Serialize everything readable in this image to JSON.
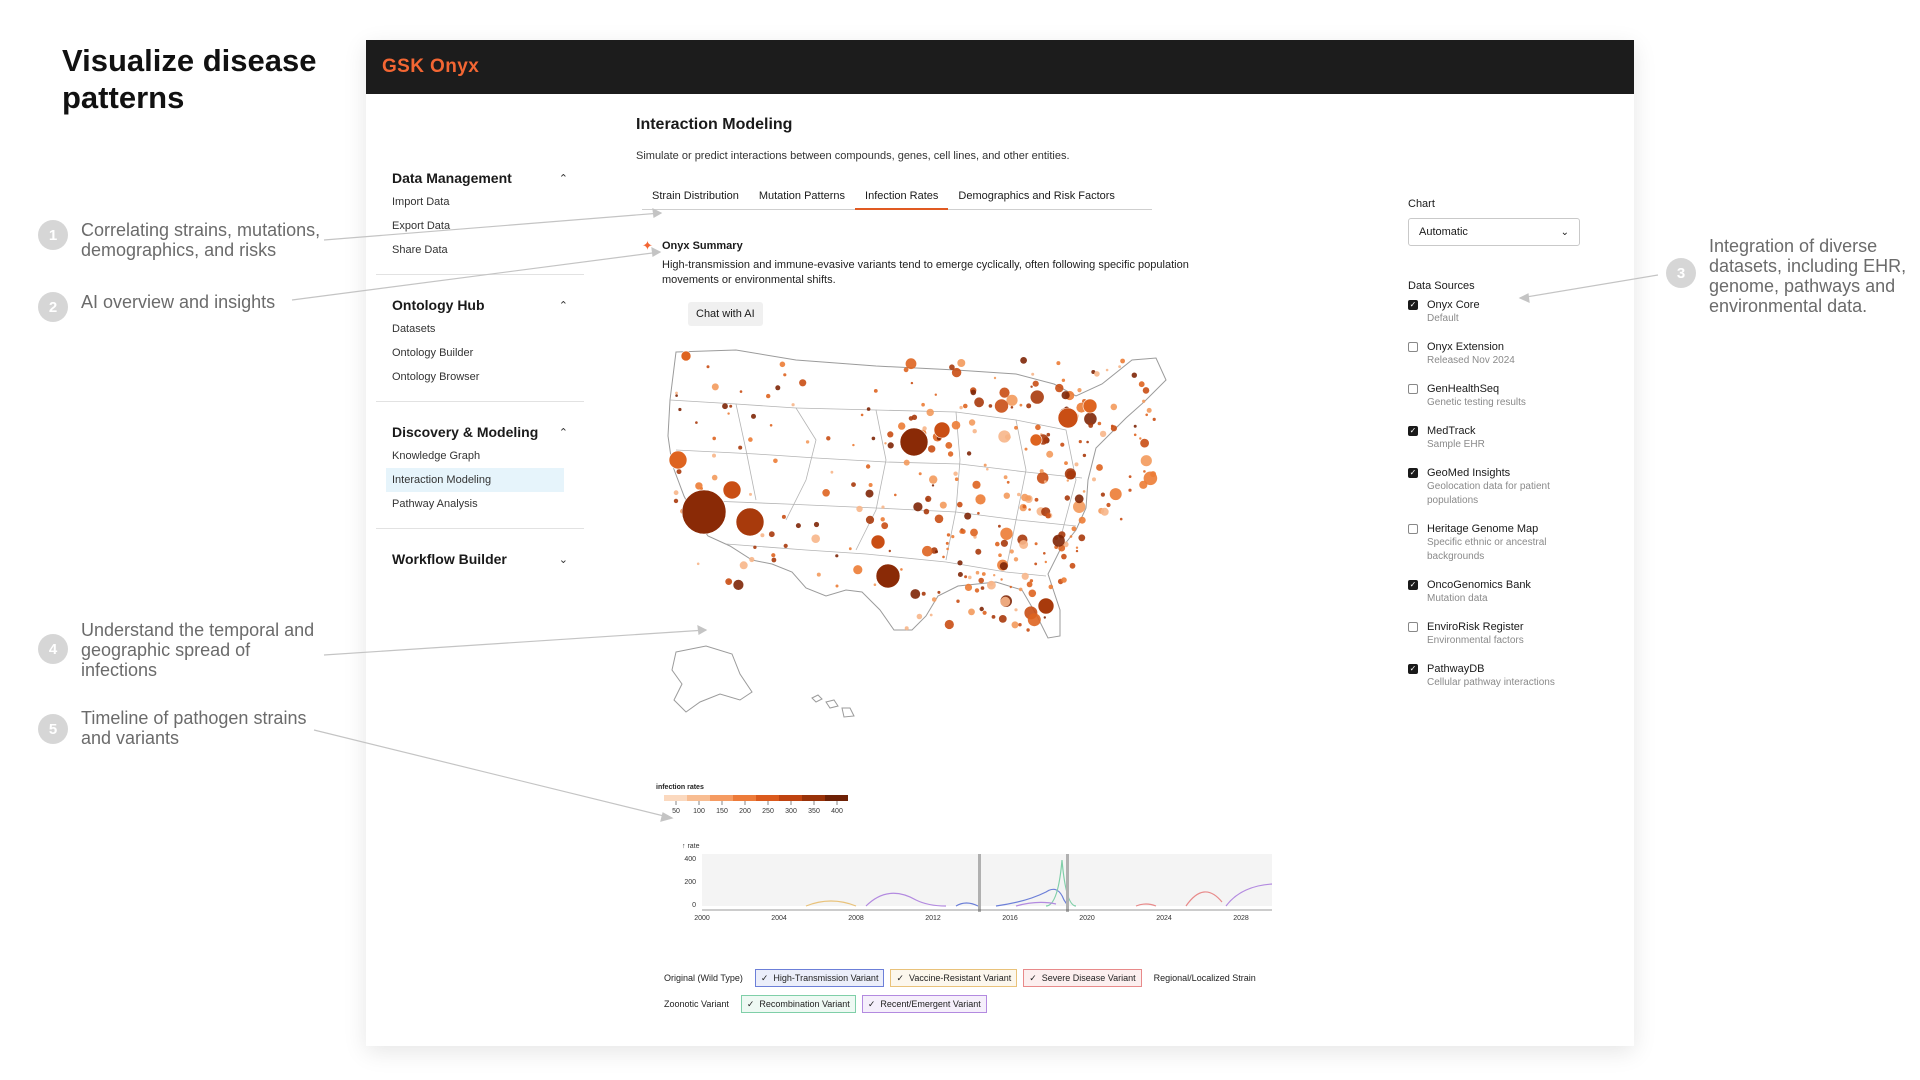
{
  "headline": "Visualize disease patterns",
  "callouts": [
    {
      "number": "1",
      "text": "Correlating strains, mutations, demographics, and risks"
    },
    {
      "number": "2",
      "text": "AI overview and insights"
    },
    {
      "number": "3",
      "text": "Integration of diverse datasets, including EHR, genome, pathways and environmental data."
    },
    {
      "number": "4",
      "text": "Understand the temporal and geographic spread of infections"
    },
    {
      "number": "5",
      "text": "Timeline of pathogen strains and variants"
    }
  ],
  "app": {
    "logo": "GSK Onyx",
    "brand_color": "#f36633",
    "header_color": "#1c1c1c"
  },
  "sidebar": {
    "sections": [
      {
        "title": "Data Management",
        "icon": "chevron-up-icon",
        "items": [
          "Import Data",
          "Export Data",
          "Share Data"
        ]
      },
      {
        "title": "Ontology Hub",
        "icon": "chevron-up-icon",
        "items": [
          "Datasets",
          "Ontology Builder",
          "Ontology Browser"
        ]
      },
      {
        "title": "Discovery & Modeling",
        "icon": "chevron-up-icon",
        "items": [
          "Knowledge Graph",
          "Interaction Modeling",
          "Pathway Analysis"
        ],
        "active": "Interaction Modeling"
      },
      {
        "title": "Workflow Builder",
        "icon": "chevron-down-icon",
        "items": []
      }
    ]
  },
  "main": {
    "title": "Interaction Modeling",
    "subtitle": "Simulate or predict interactions between compounds, genes, cell lines, and other entities.",
    "tabs": [
      {
        "label": "Strain Distribution",
        "active": false
      },
      {
        "label": "Mutation Patterns",
        "active": false
      },
      {
        "label": "Infection Rates",
        "active": true
      },
      {
        "label": "Demographics and Risk Factors",
        "active": false
      }
    ],
    "summary": {
      "icon": "sparkle-icon",
      "title": "Onyx Summary",
      "body": "High-transmission and immune-evasive variants tend to emerge cyclically, often following specific population movements or environmental shifts.",
      "chat_button": "Chat with AI"
    },
    "map_legend": {
      "label": "infection rates",
      "ticks": [
        "50",
        "100",
        "150",
        "200",
        "250",
        "300",
        "350",
        "400"
      ],
      "colors": [
        "#fbd9bf",
        "#f8bd92",
        "#f59b62",
        "#ed7b3a",
        "#db5a1d",
        "#bf4310",
        "#993209",
        "#6e2106"
      ]
    },
    "timeline": {
      "y_label": "↑ rate",
      "y_ticks": [
        "400",
        "200",
        "0"
      ],
      "x_ticks": [
        "2000",
        "2004",
        "2008",
        "2012",
        "2016",
        "2020",
        "2024",
        "2028"
      ]
    },
    "strains": [
      [
        {
          "label": "Original (Wild Type)",
          "checked": false,
          "color": ""
        },
        {
          "label": "High-Transmission Variant",
          "checked": true,
          "color": "#6c7fd8"
        },
        {
          "label": "Vaccine-Resistant Variant",
          "checked": true,
          "color": "#e9c27a"
        },
        {
          "label": "Severe Disease Variant",
          "checked": true,
          "color": "#e88a8a"
        },
        {
          "label": "Regional/Localized Strain",
          "checked": false,
          "color": ""
        }
      ],
      [
        {
          "label": "Zoonotic Variant",
          "checked": false,
          "color": ""
        },
        {
          "label": "Recombination Variant",
          "checked": true,
          "color": "#7fcfa8"
        },
        {
          "label": "Recent/Emergent Variant",
          "checked": true,
          "color": "#b38ae0"
        }
      ]
    ]
  },
  "right_panel": {
    "chart_label": "Chart",
    "chart_select": "Automatic",
    "data_sources_label": "Data Sources",
    "sources": [
      {
        "name": "Onyx Core",
        "desc": "Default",
        "checked": true
      },
      {
        "name": "Onyx Extension",
        "desc": "Released Nov 2024",
        "checked": false
      },
      {
        "name": "GenHealthSeq",
        "desc": "Genetic testing results",
        "checked": false
      },
      {
        "name": "MedTrack",
        "desc": "Sample EHR",
        "checked": true
      },
      {
        "name": "GeoMed Insights",
        "desc": "Geolocation data for patient populations",
        "checked": true
      },
      {
        "name": "Heritage Genome Map",
        "desc": "Specific ethnic or ancestral backgrounds",
        "checked": false
      },
      {
        "name": "OncoGenomics Bank",
        "desc": "Mutation data",
        "checked": true
      },
      {
        "name": "EnviroRisk Register",
        "desc": "Environmental factors",
        "checked": false
      },
      {
        "name": "PathwayDB",
        "desc": "Cellular pathway interactions",
        "checked": true
      }
    ]
  }
}
